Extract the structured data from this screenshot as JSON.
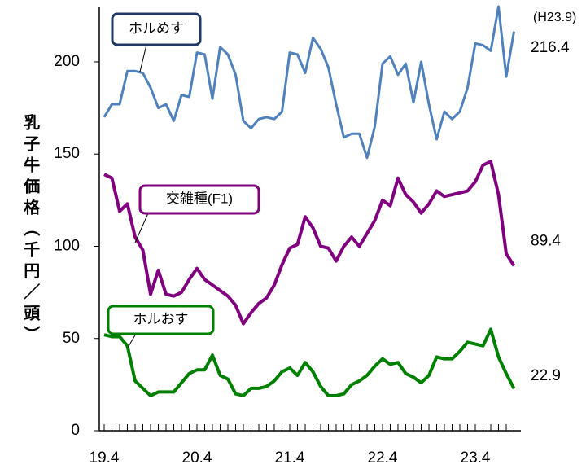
{
  "chart_data": {
    "type": "line",
    "y_label": "乳子牛価格（千円／頭）",
    "annotation": "(H23.9)",
    "categories": [
      "19.4",
      null,
      null,
      null,
      null,
      null,
      null,
      null,
      null,
      null,
      null,
      null,
      "20.4",
      null,
      null,
      null,
      null,
      null,
      null,
      null,
      null,
      null,
      null,
      null,
      "21.4",
      null,
      null,
      null,
      null,
      null,
      null,
      null,
      null,
      null,
      null,
      null,
      "22.4",
      null,
      null,
      null,
      null,
      null,
      null,
      null,
      null,
      null,
      null,
      null,
      "23.4",
      null,
      null,
      null,
      null,
      null
    ],
    "series": [
      {
        "name": "ホルめす",
        "color": "#4f81bd",
        "values": [
          170,
          177,
          177,
          195,
          195,
          194,
          186,
          175,
          177,
          168,
          182,
          181,
          205,
          204,
          180,
          208,
          204,
          193,
          168,
          164,
          169,
          170,
          169,
          173,
          205,
          204,
          194,
          213,
          207,
          197,
          177,
          159,
          161,
          161,
          148,
          165,
          199,
          203,
          193,
          199,
          178,
          200,
          177,
          158,
          173,
          169,
          173,
          186,
          210,
          209,
          206,
          230,
          192,
          216.4
        ]
      },
      {
        "name": "交雑種(F1)",
        "color": "#800080",
        "values": [
          139,
          137,
          119,
          123,
          105,
          98,
          74,
          87,
          74,
          73,
          75,
          82,
          88,
          82,
          79,
          76,
          73,
          68,
          58,
          64,
          69,
          72,
          79,
          90,
          99,
          101,
          116,
          110,
          100,
          99,
          92,
          100,
          105,
          100,
          107,
          114,
          125,
          122,
          137,
          128,
          124,
          118,
          123,
          130,
          127,
          128,
          129,
          130,
          135,
          144,
          146,
          128,
          96,
          89.4
        ]
      },
      {
        "name": "ホルおす",
        "color": "#008000",
        "values": [
          52,
          51,
          51,
          46,
          27,
          23,
          19,
          21,
          21,
          21,
          26,
          31,
          33,
          33,
          41,
          30,
          28,
          20,
          19,
          23,
          23,
          24,
          27,
          32,
          34,
          30,
          37,
          32,
          24,
          19,
          19,
          20,
          25,
          27,
          30,
          35,
          39,
          36,
          37,
          31,
          29,
          26,
          30,
          40,
          39,
          39,
          43,
          48,
          47,
          46,
          55,
          40,
          31,
          22.9
        ]
      }
    ],
    "ylim": [
      0,
      230
    ],
    "yticks": [
      0,
      50,
      100,
      150,
      200
    ]
  }
}
